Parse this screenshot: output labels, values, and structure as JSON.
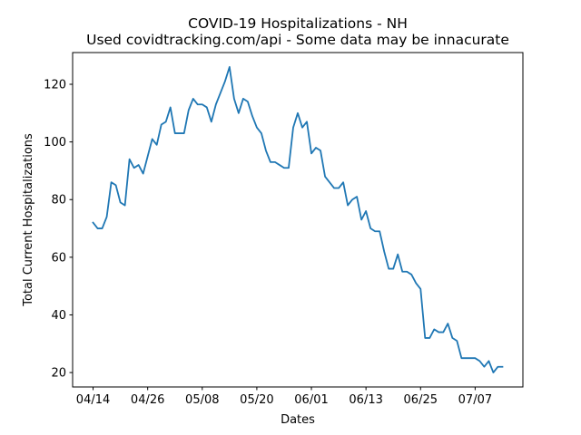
{
  "chart_data": {
    "type": "line",
    "title": "COVID-19 Hospitalizations - NH",
    "subtitle": "Used covidtracking.com/api - Some data may be innacurate",
    "xlabel": "Dates",
    "ylabel": "Total Current Hospitalizations",
    "x_tick_labels": [
      "04/14",
      "04/26",
      "05/08",
      "05/20",
      "06/01",
      "06/13",
      "06/25",
      "07/07"
    ],
    "y_ticks": [
      20,
      40,
      60,
      80,
      100,
      120
    ],
    "xlim": [
      -4.5,
      94.5
    ],
    "ylim": [
      15,
      131
    ],
    "grid": false,
    "legend": "none",
    "series": [
      {
        "color": "#1f77b4",
        "x": [
          0,
          1,
          2,
          3,
          4,
          5,
          6,
          7,
          8,
          9,
          10,
          11,
          12,
          13,
          14,
          15,
          16,
          17,
          18,
          19,
          20,
          21,
          22,
          23,
          24,
          25,
          26,
          27,
          28,
          29,
          30,
          31,
          32,
          33,
          34,
          35,
          36,
          37,
          38,
          39,
          40,
          41,
          42,
          43,
          44,
          45,
          46,
          47,
          48,
          49,
          50,
          51,
          52,
          53,
          54,
          55,
          56,
          57,
          58,
          59,
          60,
          61,
          62,
          63,
          64,
          65,
          66,
          67,
          68,
          69,
          70,
          71,
          72,
          73,
          74,
          75,
          76,
          77,
          78,
          79,
          80,
          81,
          82,
          83,
          84,
          85,
          86,
          87,
          88,
          89,
          90
        ],
        "y": [
          72,
          70,
          70,
          74,
          86,
          85,
          79,
          78,
          94,
          91,
          92,
          89,
          95,
          101,
          99,
          106,
          107,
          112,
          103,
          103,
          103,
          111,
          115,
          113,
          113,
          112,
          107,
          113,
          117,
          121,
          126,
          115,
          110,
          115,
          114,
          109,
          105,
          103,
          97,
          93,
          93,
          92,
          91,
          91,
          105,
          110,
          105,
          107,
          96,
          98,
          97,
          88,
          86,
          84,
          84,
          86,
          78,
          80,
          81,
          73,
          76,
          70,
          69,
          69,
          62,
          56,
          56,
          61,
          55,
          55,
          54,
          51,
          49,
          32,
          32,
          35,
          34,
          34,
          37,
          32,
          31,
          25,
          25,
          25,
          25,
          24,
          22,
          24,
          20,
          22,
          22
        ]
      }
    ]
  }
}
